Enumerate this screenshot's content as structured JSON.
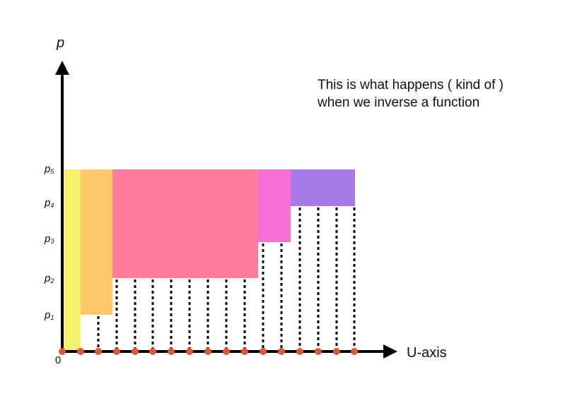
{
  "y_axis": {
    "title": "p",
    "ticks": [
      {
        "main": "p",
        "sub": "1"
      },
      {
        "main": "p",
        "sub": "2"
      },
      {
        "main": "p",
        "sub": "3"
      },
      {
        "main": "p",
        "sub": "4"
      },
      {
        "main": "p",
        "sub": "5"
      }
    ]
  },
  "x_axis": {
    "title": "U-axis",
    "origin": "0"
  },
  "annotation": {
    "line1": "This is what happens ( kind of )",
    "line2": "when we inverse a function"
  },
  "colors": {
    "axis": "#000000",
    "dot": "#e2553a",
    "dotted_line": "#000000",
    "band_1": "#f7f26e",
    "band_2": "#ffc86b",
    "band_3": "#ff7b9c",
    "band_4": "#f76fd4",
    "band_5": "#a879e8"
  }
}
